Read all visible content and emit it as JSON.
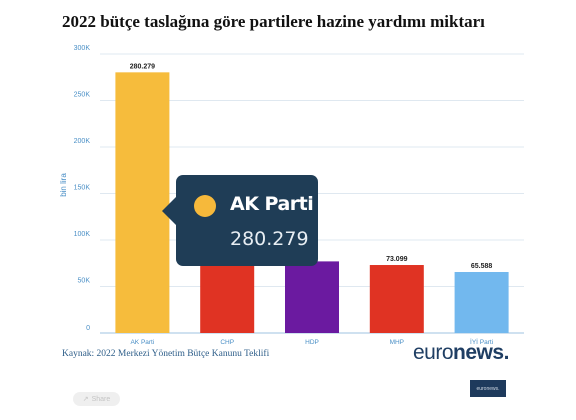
{
  "title": "2022 bütçe taslağına göre partilere hazine yardımı miktarı",
  "source": "Kaynak: 2022 Merkezi Yönetim Bütçe Kanunu Teklifi",
  "logo": {
    "part1": "euro",
    "part2": "news",
    "dot": "."
  },
  "thumbnail_text": "euronews.",
  "share_label": "Share",
  "tooltip": {
    "name": "AK Parti",
    "value": "280.279",
    "color": "#f6b93b"
  },
  "chart_data": {
    "type": "bar",
    "ylabel": "bin lira",
    "ylim": [
      0,
      300000
    ],
    "yticks": [
      0,
      50000,
      100000,
      150000,
      200000,
      250000,
      300000
    ],
    "ytick_labels": [
      "0",
      "50K",
      "100K",
      "150K",
      "200K",
      "250K",
      "300K"
    ],
    "grid": true,
    "categories": [
      "AK Parti",
      "CHP",
      "HDP",
      "MHP",
      "İYİ Parti"
    ],
    "values": [
      280279,
      86000,
      77000,
      73099,
      65588
    ],
    "data_labels": [
      "280.279",
      "",
      "",
      "73.099",
      "65.588"
    ],
    "colors": [
      "#f6bc3c",
      "#e03323",
      "#6b1aa0",
      "#e03323",
      "#72b8ee"
    ]
  }
}
